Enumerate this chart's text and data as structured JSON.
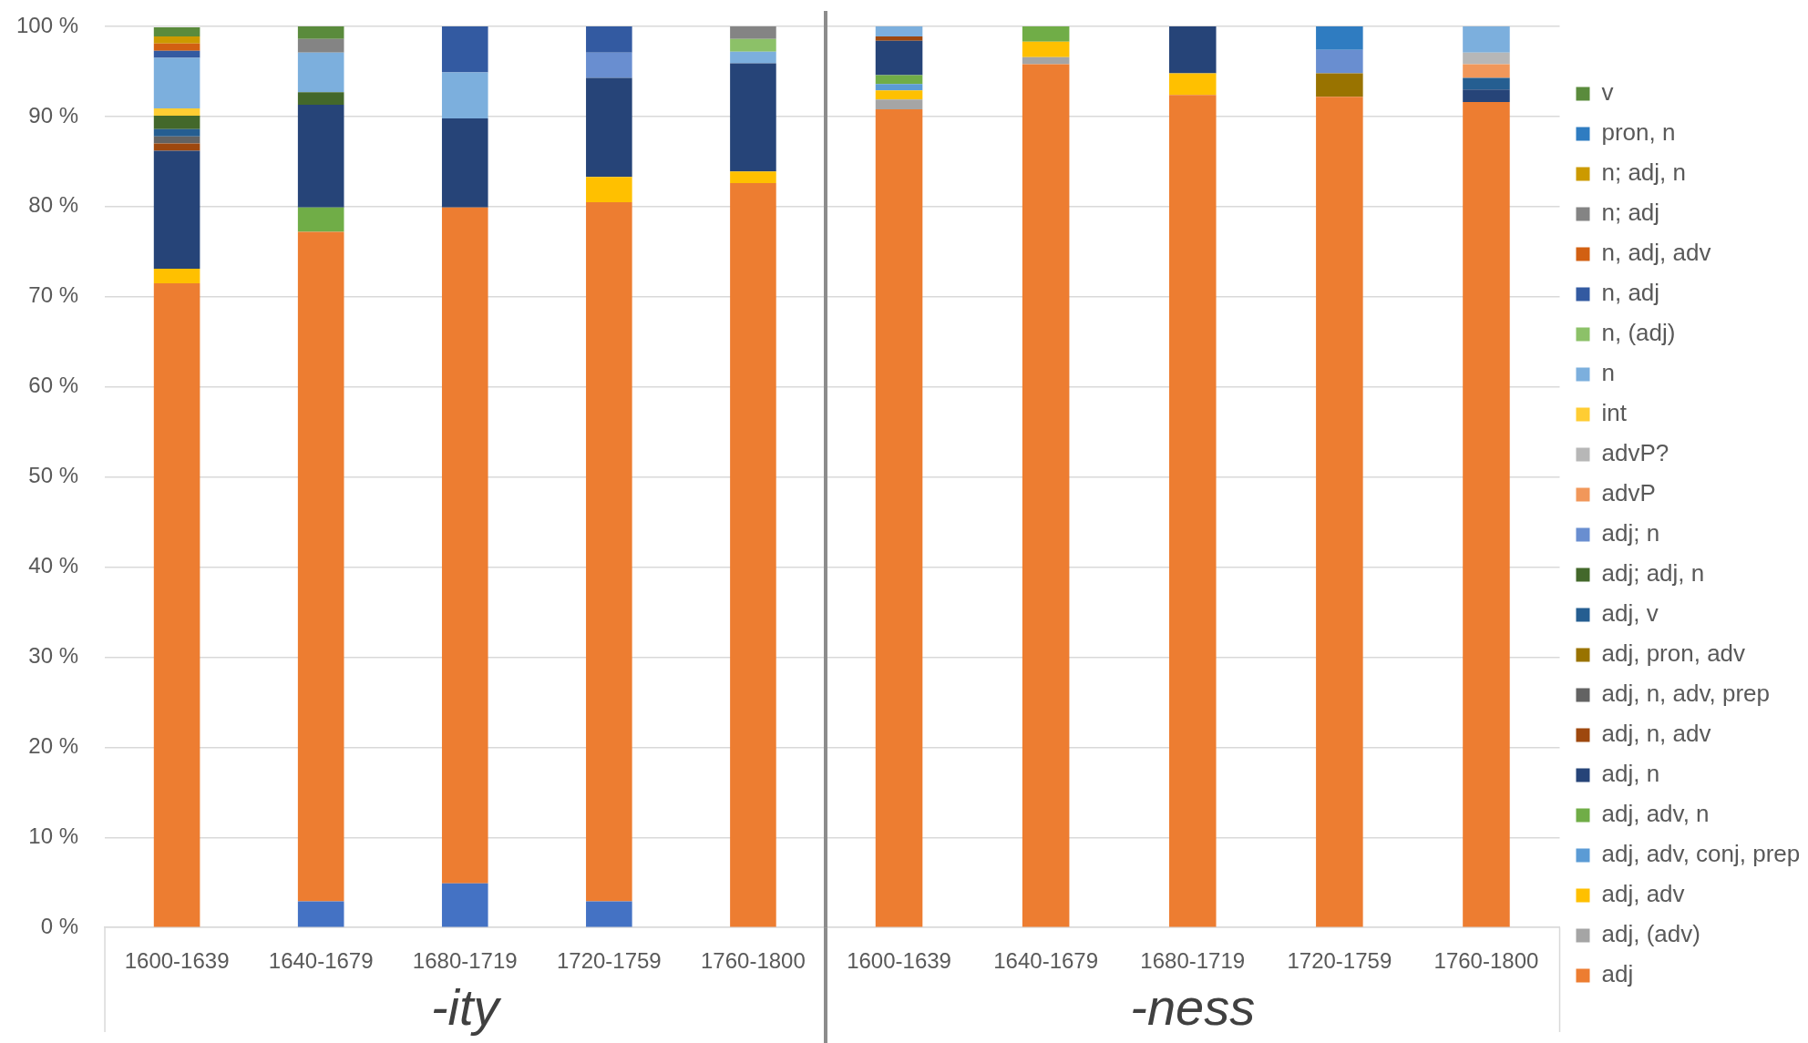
{
  "chart_data": [
    {
      "type": "bar",
      "stacked": true,
      "grid": "y",
      "xlabel": "-ity",
      "categories": [
        "1600-1639",
        "1640-1679",
        "1680-1719",
        "1720-1759",
        "1760-1800"
      ],
      "ylim": [
        0,
        100
      ],
      "yticks": [
        {
          "value": 0,
          "label": "0 %"
        },
        {
          "value": 10,
          "label": "10 %"
        },
        {
          "value": 20,
          "label": "20 %"
        },
        {
          "value": 30,
          "label": "30 %"
        },
        {
          "value": 40,
          "label": "40 %"
        },
        {
          "value": 50,
          "label": "50 %"
        },
        {
          "value": 60,
          "label": "60 %"
        },
        {
          "value": 70,
          "label": "70 %"
        },
        {
          "value": 80,
          "label": "80 %"
        },
        {
          "value": 90,
          "label": "90 %"
        },
        {
          "value": 100,
          "label": "100 %"
        }
      ],
      "series": [
        {
          "color": "#4472c4",
          "values": [
            null,
            2.9,
            4.9,
            2.9,
            null
          ]
        },
        {
          "color": "#ed7d31",
          "values": [
            71.5,
            74.3,
            75.0,
            77.6,
            82.6
          ]
        },
        {
          "color": "#ffc000",
          "values": [
            1.6,
            null,
            null,
            2.8,
            1.3
          ]
        },
        {
          "color": "#70ad47",
          "values": [
            null,
            2.7,
            null,
            null,
            null
          ]
        },
        {
          "color": "#264478",
          "values": [
            13.1,
            11.4,
            9.9,
            11.0,
            12.0
          ]
        },
        {
          "color": "#9e480e",
          "values": [
            0.8,
            null,
            null,
            null,
            null
          ]
        },
        {
          "color": "#636363",
          "values": [
            0.8,
            null,
            null,
            null,
            null
          ]
        },
        {
          "color": "#255e91",
          "values": [
            0.8,
            null,
            null,
            null,
            null
          ]
        },
        {
          "color": "#43682b",
          "values": [
            1.5,
            1.4,
            null,
            null,
            null
          ]
        },
        {
          "color": "#698ed0",
          "values": [
            null,
            null,
            null,
            2.8,
            null
          ]
        },
        {
          "color": "#ffcd33",
          "values": [
            0.8,
            null,
            null,
            null,
            null
          ]
        },
        {
          "color": "#7cafdd",
          "values": [
            5.6,
            4.4,
            5.1,
            null,
            1.3
          ]
        },
        {
          "color": "#8cc168",
          "values": [
            null,
            null,
            null,
            null,
            1.4
          ]
        },
        {
          "color": "#335aa1",
          "values": [
            0.8,
            null,
            5.1,
            2.9,
            null
          ]
        },
        {
          "color": "#d26012",
          "values": [
            0.8,
            null,
            null,
            null,
            null
          ]
        },
        {
          "color": "#848484",
          "values": [
            null,
            1.5,
            null,
            null,
            1.4
          ]
        },
        {
          "color": "#cc9a00",
          "values": [
            0.8,
            null,
            null,
            null,
            null
          ]
        },
        {
          "color": "#5a8b3c",
          "values": [
            1.0,
            1.4,
            null,
            null,
            null
          ]
        }
      ]
    },
    {
      "type": "bar",
      "stacked": true,
      "grid": "y",
      "legend": "right",
      "tick_labels": "x",
      "xlabel": "-ness",
      "categories": [
        "1600-1639",
        "1640-1679",
        "1680-1719",
        "1720-1759",
        "1760-1800"
      ],
      "ylim": [
        0,
        100
      ],
      "yticks": [
        0,
        10,
        20,
        30,
        40,
        50,
        60,
        70,
        80,
        90,
        100
      ],
      "series": [
        {
          "name": "adj",
          "color": "#ed7d31",
          "values": [
            90.8,
            95.8,
            92.4,
            92.2,
            91.6
          ]
        },
        {
          "name": "adj, (adv)",
          "color": "#a5a5a5",
          "values": [
            1.1,
            0.8,
            null,
            null,
            null
          ]
        },
        {
          "name": "adj, adv",
          "color": "#ffc000",
          "values": [
            1.0,
            1.7,
            2.4,
            null,
            null
          ]
        },
        {
          "name": "adj, adv, conj, prep",
          "color": "#5b9bd5",
          "values": [
            0.7,
            null,
            null,
            null,
            null
          ]
        },
        {
          "name": "adj, adv, n",
          "color": "#70ad47",
          "values": [
            1.0,
            1.7,
            null,
            null,
            null
          ]
        },
        {
          "name": "adj, n",
          "color": "#264478",
          "values": [
            3.8,
            null,
            5.2,
            null,
            1.4
          ]
        },
        {
          "name": "adj, n, adv",
          "color": "#9e480e",
          "values": [
            0.5,
            null,
            null,
            null,
            null
          ]
        },
        {
          "name": "adj, n, adv, prep",
          "color": "#636363",
          "values": [
            null,
            null,
            null,
            null,
            null
          ]
        },
        {
          "name": "adj, pron, adv",
          "color": "#997300",
          "values": [
            null,
            null,
            null,
            2.6,
            null
          ]
        },
        {
          "name": "adj, v",
          "color": "#255e91",
          "values": [
            null,
            null,
            null,
            null,
            1.3
          ]
        },
        {
          "name": "adj; adj, n",
          "color": "#43682b",
          "values": [
            null,
            null,
            null,
            null,
            null
          ]
        },
        {
          "name": "adj; n",
          "color": "#698ed0",
          "values": [
            null,
            null,
            null,
            2.6,
            null
          ]
        },
        {
          "name": "advP",
          "color": "#f1975a",
          "values": [
            null,
            null,
            null,
            null,
            1.5
          ]
        },
        {
          "name": "advP?",
          "color": "#b7b7b7",
          "values": [
            null,
            null,
            null,
            null,
            1.3
          ]
        },
        {
          "name": "int",
          "color": "#ffcd33",
          "values": [
            null,
            null,
            null,
            null,
            null
          ]
        },
        {
          "name": "n",
          "color": "#7cafdd",
          "values": [
            1.1,
            null,
            null,
            null,
            2.9
          ]
        },
        {
          "name": "n, (adj)",
          "color": "#8cc168",
          "values": [
            null,
            null,
            null,
            null,
            null
          ]
        },
        {
          "name": "n, adj",
          "color": "#335aa1",
          "values": [
            null,
            null,
            null,
            null,
            null
          ]
        },
        {
          "name": "n, adj, adv",
          "color": "#d26012",
          "values": [
            null,
            null,
            null,
            null,
            null
          ]
        },
        {
          "name": "n; adj",
          "color": "#848484",
          "values": [
            null,
            null,
            null,
            null,
            null
          ]
        },
        {
          "name": "n; adj, n",
          "color": "#cc9a00",
          "values": [
            null,
            null,
            null,
            null,
            null
          ]
        },
        {
          "name": "pron, n",
          "color": "#2f7cc1",
          "values": [
            null,
            null,
            null,
            2.6,
            null
          ]
        },
        {
          "name": "v",
          "color": "#5a8b3c",
          "values": [
            null,
            null,
            null,
            null,
            null
          ]
        }
      ]
    }
  ]
}
